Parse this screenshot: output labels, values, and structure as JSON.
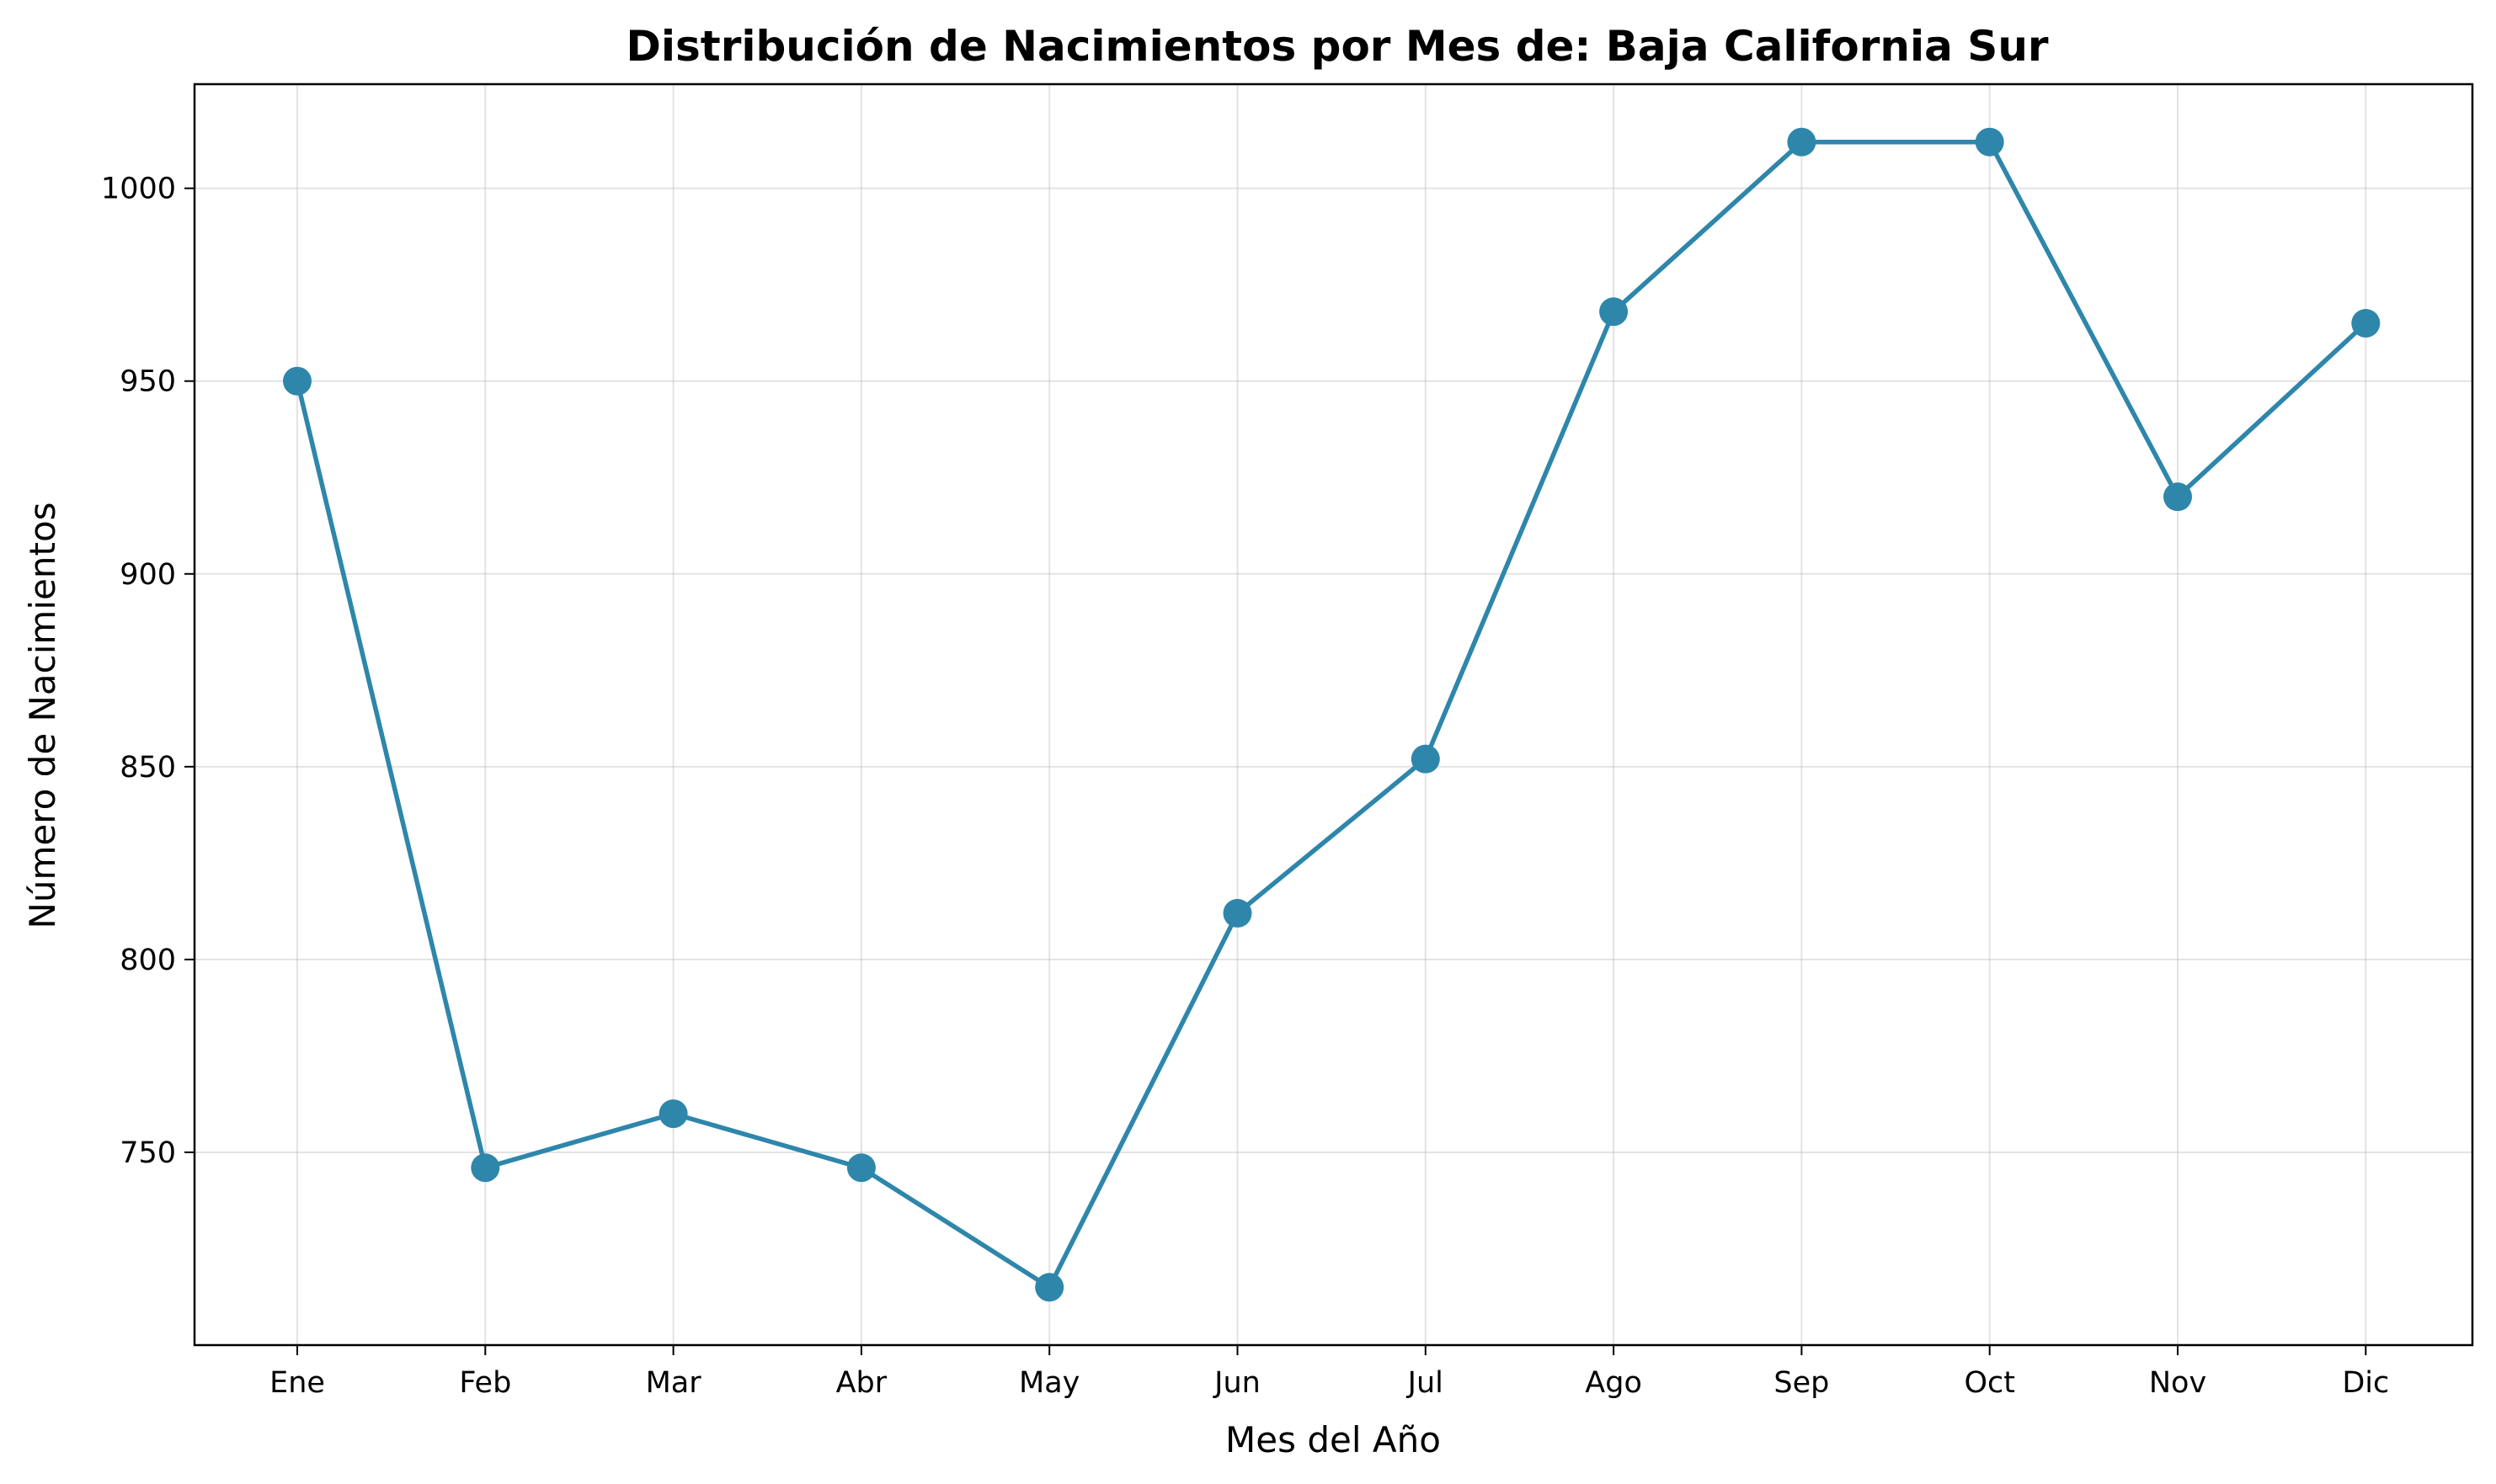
{
  "chart_data": {
    "type": "line",
    "title": "Distribución de Nacimientos por Mes de: Baja California Sur",
    "xlabel": "Mes del Año",
    "ylabel": "Número de Nacimientos",
    "categories": [
      "Ene",
      "Feb",
      "Mar",
      "Abr",
      "May",
      "Jun",
      "Jul",
      "Ago",
      "Sep",
      "Oct",
      "Nov",
      "Dic"
    ],
    "series": [
      {
        "values": [
          950,
          746,
          760,
          746,
          715,
          812,
          852,
          968,
          1012,
          1012,
          920,
          965
        ]
      }
    ],
    "yticks": [
      750,
      800,
      850,
      900,
      950,
      1000
    ],
    "ylim": [
      700,
      1027
    ],
    "grid": true,
    "line_color": "#2e86ab",
    "marker": "circle"
  }
}
